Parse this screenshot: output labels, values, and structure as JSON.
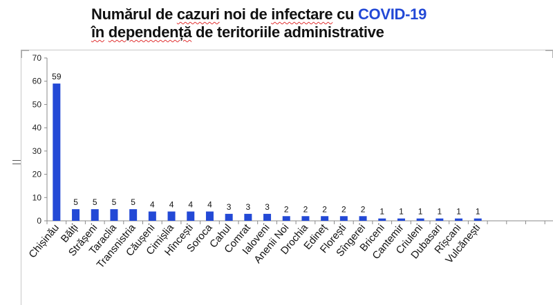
{
  "title": {
    "line1_part1": "Numărul de ",
    "line1_word_cazuri": "cazuri",
    "line1_part2": " noi de ",
    "line1_word_infectare": "infectare",
    "line1_part3": " cu ",
    "line1_accent": "COVID-19",
    "line2_word_in": "în",
    "line2_space1": " ",
    "line2_word_dependenta": "dependență",
    "line2_rest": " de teritoriile administrative"
  },
  "colors": {
    "bar": "#2349d6",
    "accent": "#2349d6"
  },
  "chart_data": {
    "type": "bar",
    "title": "Numărul de cazuri noi de infectare cu COVID-19 în dependență de teritoriile administrative",
    "xlabel": "",
    "ylabel": "",
    "ylim": [
      0,
      70
    ],
    "yticks": [
      0,
      10,
      20,
      30,
      40,
      50,
      60,
      70
    ],
    "grid": false,
    "legend": "none",
    "categories": [
      "Chișinău",
      "Bălți",
      "Strășeni",
      "Taraclia",
      "Transnistria",
      "Căușeni",
      "Cimișlia",
      "Hîncești",
      "Soroca",
      "Cahul",
      "Comrat",
      "Ialoveni",
      "Anenii Noi",
      "Drochia",
      "Edineț",
      "Florești",
      "Sîngerei",
      "Briceni",
      "Cantemir",
      "Criuleni",
      "Dubasari",
      "Rîșcani",
      "Vulcănești"
    ],
    "values": [
      59,
      5,
      5,
      5,
      5,
      4,
      4,
      4,
      4,
      3,
      3,
      3,
      2,
      2,
      2,
      2,
      2,
      1,
      1,
      1,
      1,
      1,
      1
    ],
    "empty_slots_after": 4
  }
}
